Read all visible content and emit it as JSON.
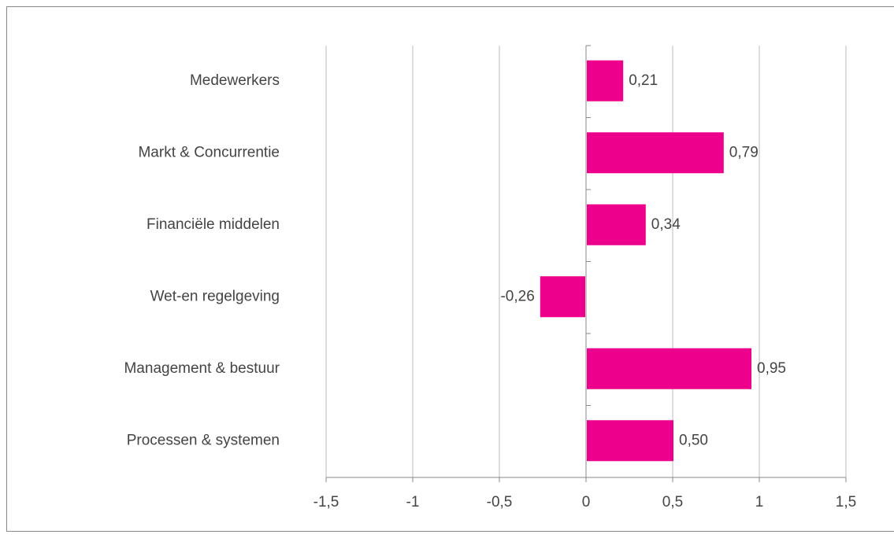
{
  "chart_data": {
    "type": "barh",
    "categories": [
      "Medewerkers",
      "Markt & Concurrentie",
      "Financiële middelen",
      "Wet-en regelgeving",
      "Management & bestuur",
      "Processen & systemen"
    ],
    "values": [
      0.21,
      0.79,
      0.34,
      -0.26,
      0.95,
      0.5
    ],
    "value_labels": [
      "0,21",
      "0,79",
      "0,34",
      "-0,26",
      "0,95",
      "0,50"
    ],
    "color": "#ec008c",
    "xlim": [
      -1.5,
      1.5
    ],
    "xticks": [
      {
        "value": -1.5,
        "label": "-1,5"
      },
      -1,
      {
        "value": -0.5,
        "label": "-0,5"
      },
      0,
      {
        "value": 0.5,
        "label": "0,5"
      },
      1,
      {
        "value": 1.5,
        "label": "1,5"
      }
    ],
    "grid": true
  }
}
